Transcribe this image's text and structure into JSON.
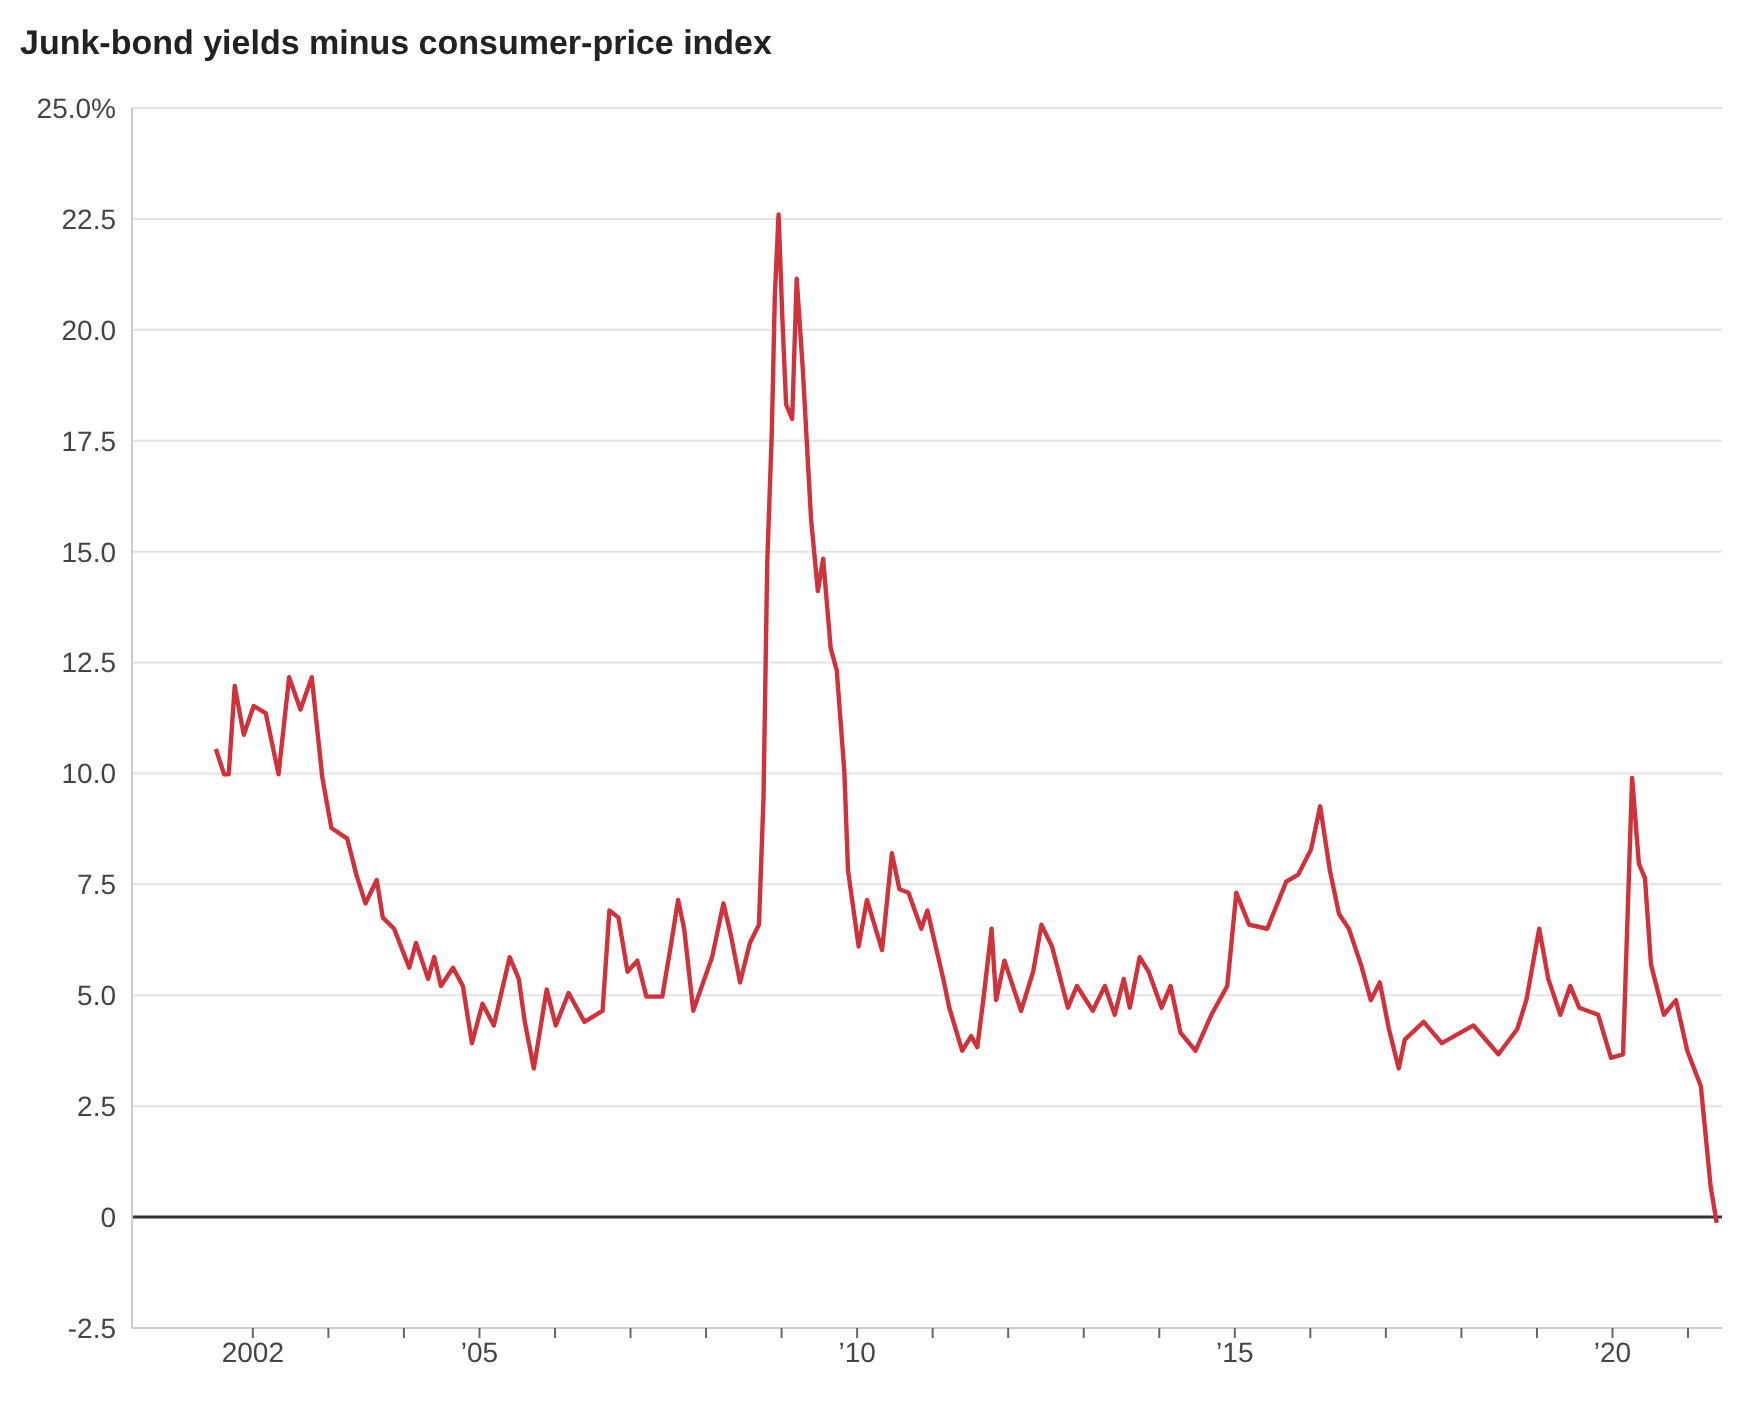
{
  "chart_data": {
    "type": "line",
    "title": "Junk-bond yields minus consumer-price index",
    "xlim": [
      2000.4,
      2021.45
    ],
    "xticks": [
      {
        "value": 2002,
        "label": "2002"
      },
      {
        "value": 2003,
        "label": null
      },
      {
        "value": 2004,
        "label": null
      },
      {
        "value": 2005,
        "label": "’05"
      },
      {
        "value": 2006,
        "label": null
      },
      {
        "value": 2007,
        "label": null
      },
      {
        "value": 2008,
        "label": null
      },
      {
        "value": 2009,
        "label": null
      },
      {
        "value": 2010,
        "label": "’10"
      },
      {
        "value": 2011,
        "label": null
      },
      {
        "value": 2012,
        "label": null
      },
      {
        "value": 2013,
        "label": null
      },
      {
        "value": 2014,
        "label": null
      },
      {
        "value": 2015,
        "label": "’15"
      },
      {
        "value": 2016,
        "label": null
      },
      {
        "value": 2017,
        "label": null
      },
      {
        "value": 2018,
        "label": null
      },
      {
        "value": 2019,
        "label": null
      },
      {
        "value": 2020,
        "label": "’20"
      },
      {
        "value": 2021,
        "label": null
      }
    ],
    "ylim": [
      -2.5,
      25
    ],
    "yticks": [
      -2.5,
      {
        "value": 0,
        "label": "0"
      },
      2.5,
      {
        "value": 5,
        "label": "5.0"
      },
      7.5,
      {
        "value": 10,
        "label": "10.0"
      },
      12.5,
      {
        "value": 15,
        "label": "15.0"
      },
      17.5,
      {
        "value": 20,
        "label": "20.0"
      },
      22.5,
      {
        "value": 25,
        "label": "25.0%"
      }
    ],
    "grid": "y",
    "ref_lines": [
      {
        "axis": "y",
        "value": 0,
        "color": "#333333"
      }
    ],
    "series": [
      {
        "color": "#d0323c",
        "x": [
          2001.51,
          2001.62,
          2001.68,
          2001.76,
          2001.88,
          2002.01,
          2002.17,
          2002.34,
          2002.48,
          2002.63,
          2002.78,
          2002.92,
          2003.04,
          2003.25,
          2003.37,
          2003.49,
          2003.64,
          2003.72,
          2003.87,
          2004.07,
          2004.16,
          2004.32,
          2004.4,
          2004.49,
          2004.65,
          2004.78,
          2004.9,
          2005.04,
          2005.19,
          2005.4,
          2005.52,
          2005.6,
          2005.72,
          2005.89,
          2006.01,
          2006.18,
          2006.39,
          2006.63,
          2006.72,
          2006.84,
          2006.96,
          2007.09,
          2007.21,
          2007.42,
          2007.54,
          2007.63,
          2007.71,
          2007.83,
          2008.08,
          2008.23,
          2008.33,
          2008.45,
          2008.58,
          2008.7,
          2008.76,
          2008.81,
          2008.87,
          2008.91,
          2008.96,
          2009.01,
          2009.06,
          2009.14,
          2009.2,
          2009.28,
          2009.39,
          2009.48,
          2009.55,
          2009.65,
          2009.73,
          2009.83,
          2009.88,
          2010.02,
          2010.13,
          2010.33,
          2010.46,
          2010.56,
          2010.68,
          2010.85,
          2010.93,
          2011.14,
          2011.22,
          2011.39,
          2011.51,
          2011.59,
          2011.67,
          2011.78,
          2011.84,
          2011.95,
          2012.17,
          2012.33,
          2012.44,
          2012.58,
          2012.79,
          2012.91,
          2013.12,
          2013.28,
          2013.41,
          2013.53,
          2013.61,
          2013.74,
          2013.86,
          2014.03,
          2014.15,
          2014.28,
          2014.48,
          2014.69,
          2014.9,
          2015.02,
          2015.19,
          2015.43,
          2015.68,
          2015.84,
          2016.01,
          2016.13,
          2016.26,
          2016.38,
          2016.51,
          2016.67,
          2016.8,
          2016.92,
          2017.04,
          2017.17,
          2017.25,
          2017.5,
          2017.74,
          2018.16,
          2018.49,
          2018.74,
          2018.86,
          2019.03,
          2019.15,
          2019.31,
          2019.44,
          2019.56,
          2019.81,
          2019.98,
          2020.14,
          2020.26,
          2020.35,
          2020.43,
          2020.51,
          2020.68,
          2020.84,
          2020.99,
          2021.17,
          2021.3,
          2021.38
        ],
        "values": [
          10.55,
          9.98,
          9.98,
          11.97,
          10.87,
          11.52,
          11.36,
          9.98,
          12.17,
          11.44,
          12.17,
          9.9,
          8.77,
          8.53,
          7.72,
          7.07,
          7.6,
          6.75,
          6.5,
          5.62,
          6.18,
          5.37,
          5.86,
          5.21,
          5.62,
          5.21,
          3.92,
          4.81,
          4.32,
          5.86,
          5.37,
          4.4,
          3.35,
          5.13,
          4.32,
          5.05,
          4.4,
          4.65,
          6.91,
          6.75,
          5.53,
          5.78,
          4.97,
          4.97,
          6.18,
          7.15,
          6.5,
          4.65,
          5.86,
          7.07,
          6.34,
          5.29,
          6.18,
          6.59,
          9.42,
          14.76,
          17.67,
          20.74,
          22.6,
          20.26,
          18.32,
          17.99,
          21.15,
          19.13,
          15.73,
          14.11,
          14.84,
          12.82,
          12.33,
          10.06,
          7.8,
          6.1,
          7.15,
          6.02,
          8.2,
          7.39,
          7.31,
          6.5,
          6.91,
          5.37,
          4.72,
          3.75,
          4.08,
          3.83,
          4.89,
          6.5,
          4.89,
          5.78,
          4.65,
          5.53,
          6.59,
          6.1,
          4.72,
          5.21,
          4.65,
          5.21,
          4.56,
          5.37,
          4.72,
          5.86,
          5.53,
          4.72,
          5.21,
          4.16,
          3.75,
          4.56,
          5.21,
          7.31,
          6.59,
          6.5,
          7.56,
          7.72,
          8.29,
          9.26,
          7.8,
          6.83,
          6.5,
          5.69,
          4.89,
          5.29,
          4.24,
          3.35,
          4.0,
          4.4,
          3.92,
          4.32,
          3.67,
          4.24,
          4.89,
          6.5,
          5.37,
          4.56,
          5.21,
          4.72,
          4.56,
          3.59,
          3.67,
          9.9,
          7.96,
          7.64,
          5.69,
          4.56,
          4.89,
          3.75,
          2.95,
          0.68,
          -0.13
        ]
      }
    ]
  }
}
